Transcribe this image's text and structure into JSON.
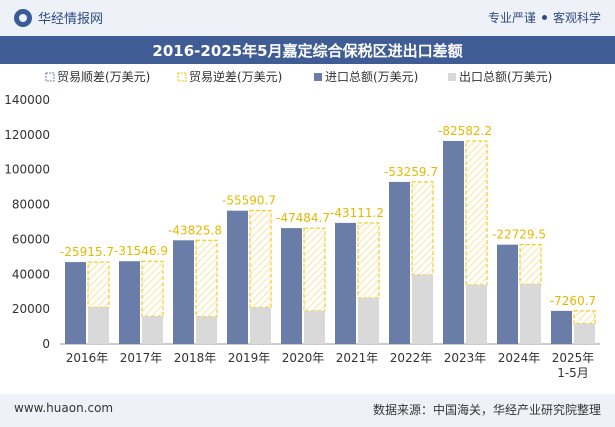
{
  "header": {
    "brand": "华经情报网",
    "slogan_a": "专业严谨",
    "slogan_b": "客观科学"
  },
  "footer": {
    "website": "www.huaon.com",
    "source": "数据来源：中国海关，华经产业研究院整理"
  },
  "colors": {
    "import": "#6a7ca8",
    "export": "#d9d9d9",
    "balance_edge": "#f2c500",
    "balance_label": "#e6b800"
  },
  "chart_data": {
    "type": "bar",
    "title": "2016-2025年5月嘉定综合保税区进出口差额",
    "categories": [
      "2016年",
      "2017年",
      "2018年",
      "2019年",
      "2020年",
      "2021年",
      "2022年",
      "2023年",
      "2024年",
      "2025年\n1-5月"
    ],
    "legend": [
      "贸易顺差(万美元)",
      "贸易逆差(万美元)",
      "进口总额(万美元)",
      "出口总额(万美元)"
    ],
    "series": [
      {
        "name": "进口总额(万美元)",
        "values": [
          47000,
          47500,
          59500,
          76500,
          66500,
          69500,
          93000,
          116500,
          57000,
          19000
        ]
      },
      {
        "name": "出口总额(万美元)",
        "values": [
          21084.3,
          15953.1,
          15674.2,
          20909.3,
          19015.3,
          26388.8,
          39740.3,
          33917.8,
          34270.5,
          11739.3
        ]
      },
      {
        "name": "贸易逆差(万美元)",
        "values": [
          -25915.7,
          -31546.9,
          -43825.8,
          -55590.7,
          -47484.7,
          -43111.2,
          -53259.7,
          -82582.2,
          -22729.5,
          -7260.7
        ]
      }
    ],
    "balance_labels": [
      "-25915.7",
      "-31546.9",
      "-43825.8",
      "-55590.7",
      "-47484.7",
      "-43111.2",
      "-53259.7",
      "-82582.2",
      "-22729.5",
      "-7260.7"
    ],
    "yticks": [
      "0",
      "20000",
      "40000",
      "60000",
      "80000",
      "100000",
      "120000",
      "140000"
    ],
    "ylim": [
      0,
      140000
    ],
    "legend_position": "top-left"
  }
}
